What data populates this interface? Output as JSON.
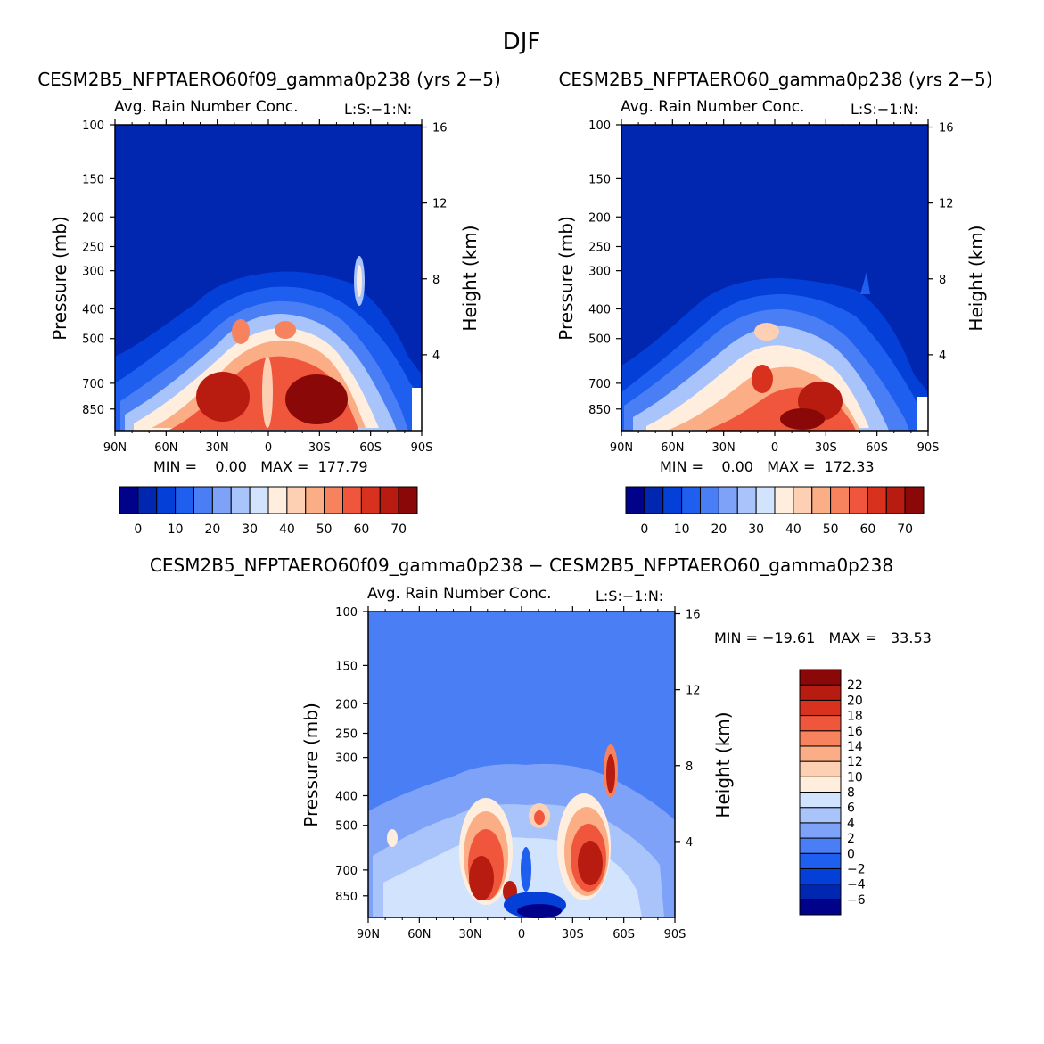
{
  "page_title": "DJF",
  "colors": {
    "model_scale": [
      "#00028a",
      "#0126b0",
      "#0440d8",
      "#1f5ff0",
      "#4a7ef5",
      "#7da2f8",
      "#a9c4fb",
      "#d2e3fd",
      "#ffeedd",
      "#fdd0b4",
      "#fbad86",
      "#f7825e",
      "#f0563c",
      "#d8321f",
      "#b81b10",
      "#8a0808"
    ],
    "diff_scale": [
      "#00028a",
      "#0126b0",
      "#0440d8",
      "#1f5ff0",
      "#4a7ef5",
      "#7da2f8",
      "#a9c4fb",
      "#d2e3fd",
      "#ffeedd",
      "#fdd0b4",
      "#fbad86",
      "#f7825e",
      "#f0563c",
      "#d8321f",
      "#b81b10",
      "#8a0808"
    ]
  },
  "chart_data": [
    {
      "type": "heatmap",
      "panel": "a",
      "title": "CESM2B5_NFPTAERO60f09_gamma0p238 (yrs 2−5)",
      "subtitle_left": "Avg. Rain Number Conc.",
      "subtitle_right": "L:S:−1:N:",
      "xlabel": "",
      "ylabel": "Pressure (mb)",
      "ylabel_right": "Height (km)",
      "x_ticks": [
        "90N",
        "60N",
        "30N",
        "0",
        "30S",
        "60S",
        "90S"
      ],
      "y_ticks": [
        "100",
        "150",
        "200",
        "250",
        "300",
        "400",
        "500",
        "700",
        "850"
      ],
      "y_ticks_right": [
        "16",
        "12",
        "8",
        "4"
      ],
      "min_max": "MIN =    0.00   MAX =  177.79",
      "colorbar_labels": [
        "0",
        "10",
        "20",
        "30",
        "40",
        "50",
        "60",
        "70"
      ],
      "contour_levels": [
        0,
        5,
        10,
        15,
        20,
        25,
        30,
        35,
        40,
        45,
        50,
        55,
        60,
        65,
        70,
        75
      ],
      "ylim": [
        1000,
        100
      ]
    },
    {
      "type": "heatmap",
      "panel": "b",
      "title": "CESM2B5_NFPTAERO60_gamma0p238 (yrs 2−5)",
      "subtitle_left": "Avg. Rain Number Conc.",
      "subtitle_right": "L:S:−1:N:",
      "xlabel": "",
      "ylabel": "Pressure (mb)",
      "ylabel_right": "Height (km)",
      "x_ticks": [
        "90N",
        "60N",
        "30N",
        "0",
        "30S",
        "60S",
        "90S"
      ],
      "y_ticks": [
        "100",
        "150",
        "200",
        "250",
        "300",
        "400",
        "500",
        "700",
        "850"
      ],
      "y_ticks_right": [
        "16",
        "12",
        "8",
        "4"
      ],
      "min_max": "MIN =    0.00   MAX =  172.33",
      "colorbar_labels": [
        "0",
        "10",
        "20",
        "30",
        "40",
        "50",
        "60",
        "70"
      ],
      "contour_levels": [
        0,
        5,
        10,
        15,
        20,
        25,
        30,
        35,
        40,
        45,
        50,
        55,
        60,
        65,
        70,
        75
      ],
      "ylim": [
        1000,
        100
      ]
    },
    {
      "type": "heatmap",
      "panel": "diff",
      "title": "CESM2B5_NFPTAERO60f09_gamma0p238 − CESM2B5_NFPTAERO60_gamma0p238",
      "subtitle_left": "Avg. Rain Number Conc.",
      "subtitle_right": "L:S:−1:N:",
      "ylabel": "Pressure (mb)",
      "ylabel_right": "Height (km)",
      "x_ticks": [
        "90N",
        "60N",
        "30N",
        "0",
        "30S",
        "60S",
        "90S"
      ],
      "y_ticks": [
        "100",
        "150",
        "200",
        "250",
        "300",
        "400",
        "500",
        "700",
        "850"
      ],
      "y_ticks_right": [
        "16",
        "12",
        "8",
        "4"
      ],
      "min_max": "MIN = −19.61   MAX =   33.53",
      "colorbar_labels": [
        "22",
        "20",
        "18",
        "16",
        "14",
        "12",
        "10",
        "8",
        "6",
        "4",
        "2",
        "0",
        "−2",
        "−4",
        "−6"
      ],
      "contour_levels": [
        -8,
        -6,
        -4,
        -2,
        0,
        2,
        4,
        6,
        8,
        10,
        12,
        14,
        16,
        18,
        20,
        22
      ],
      "ylim": [
        1000,
        100
      ]
    }
  ]
}
